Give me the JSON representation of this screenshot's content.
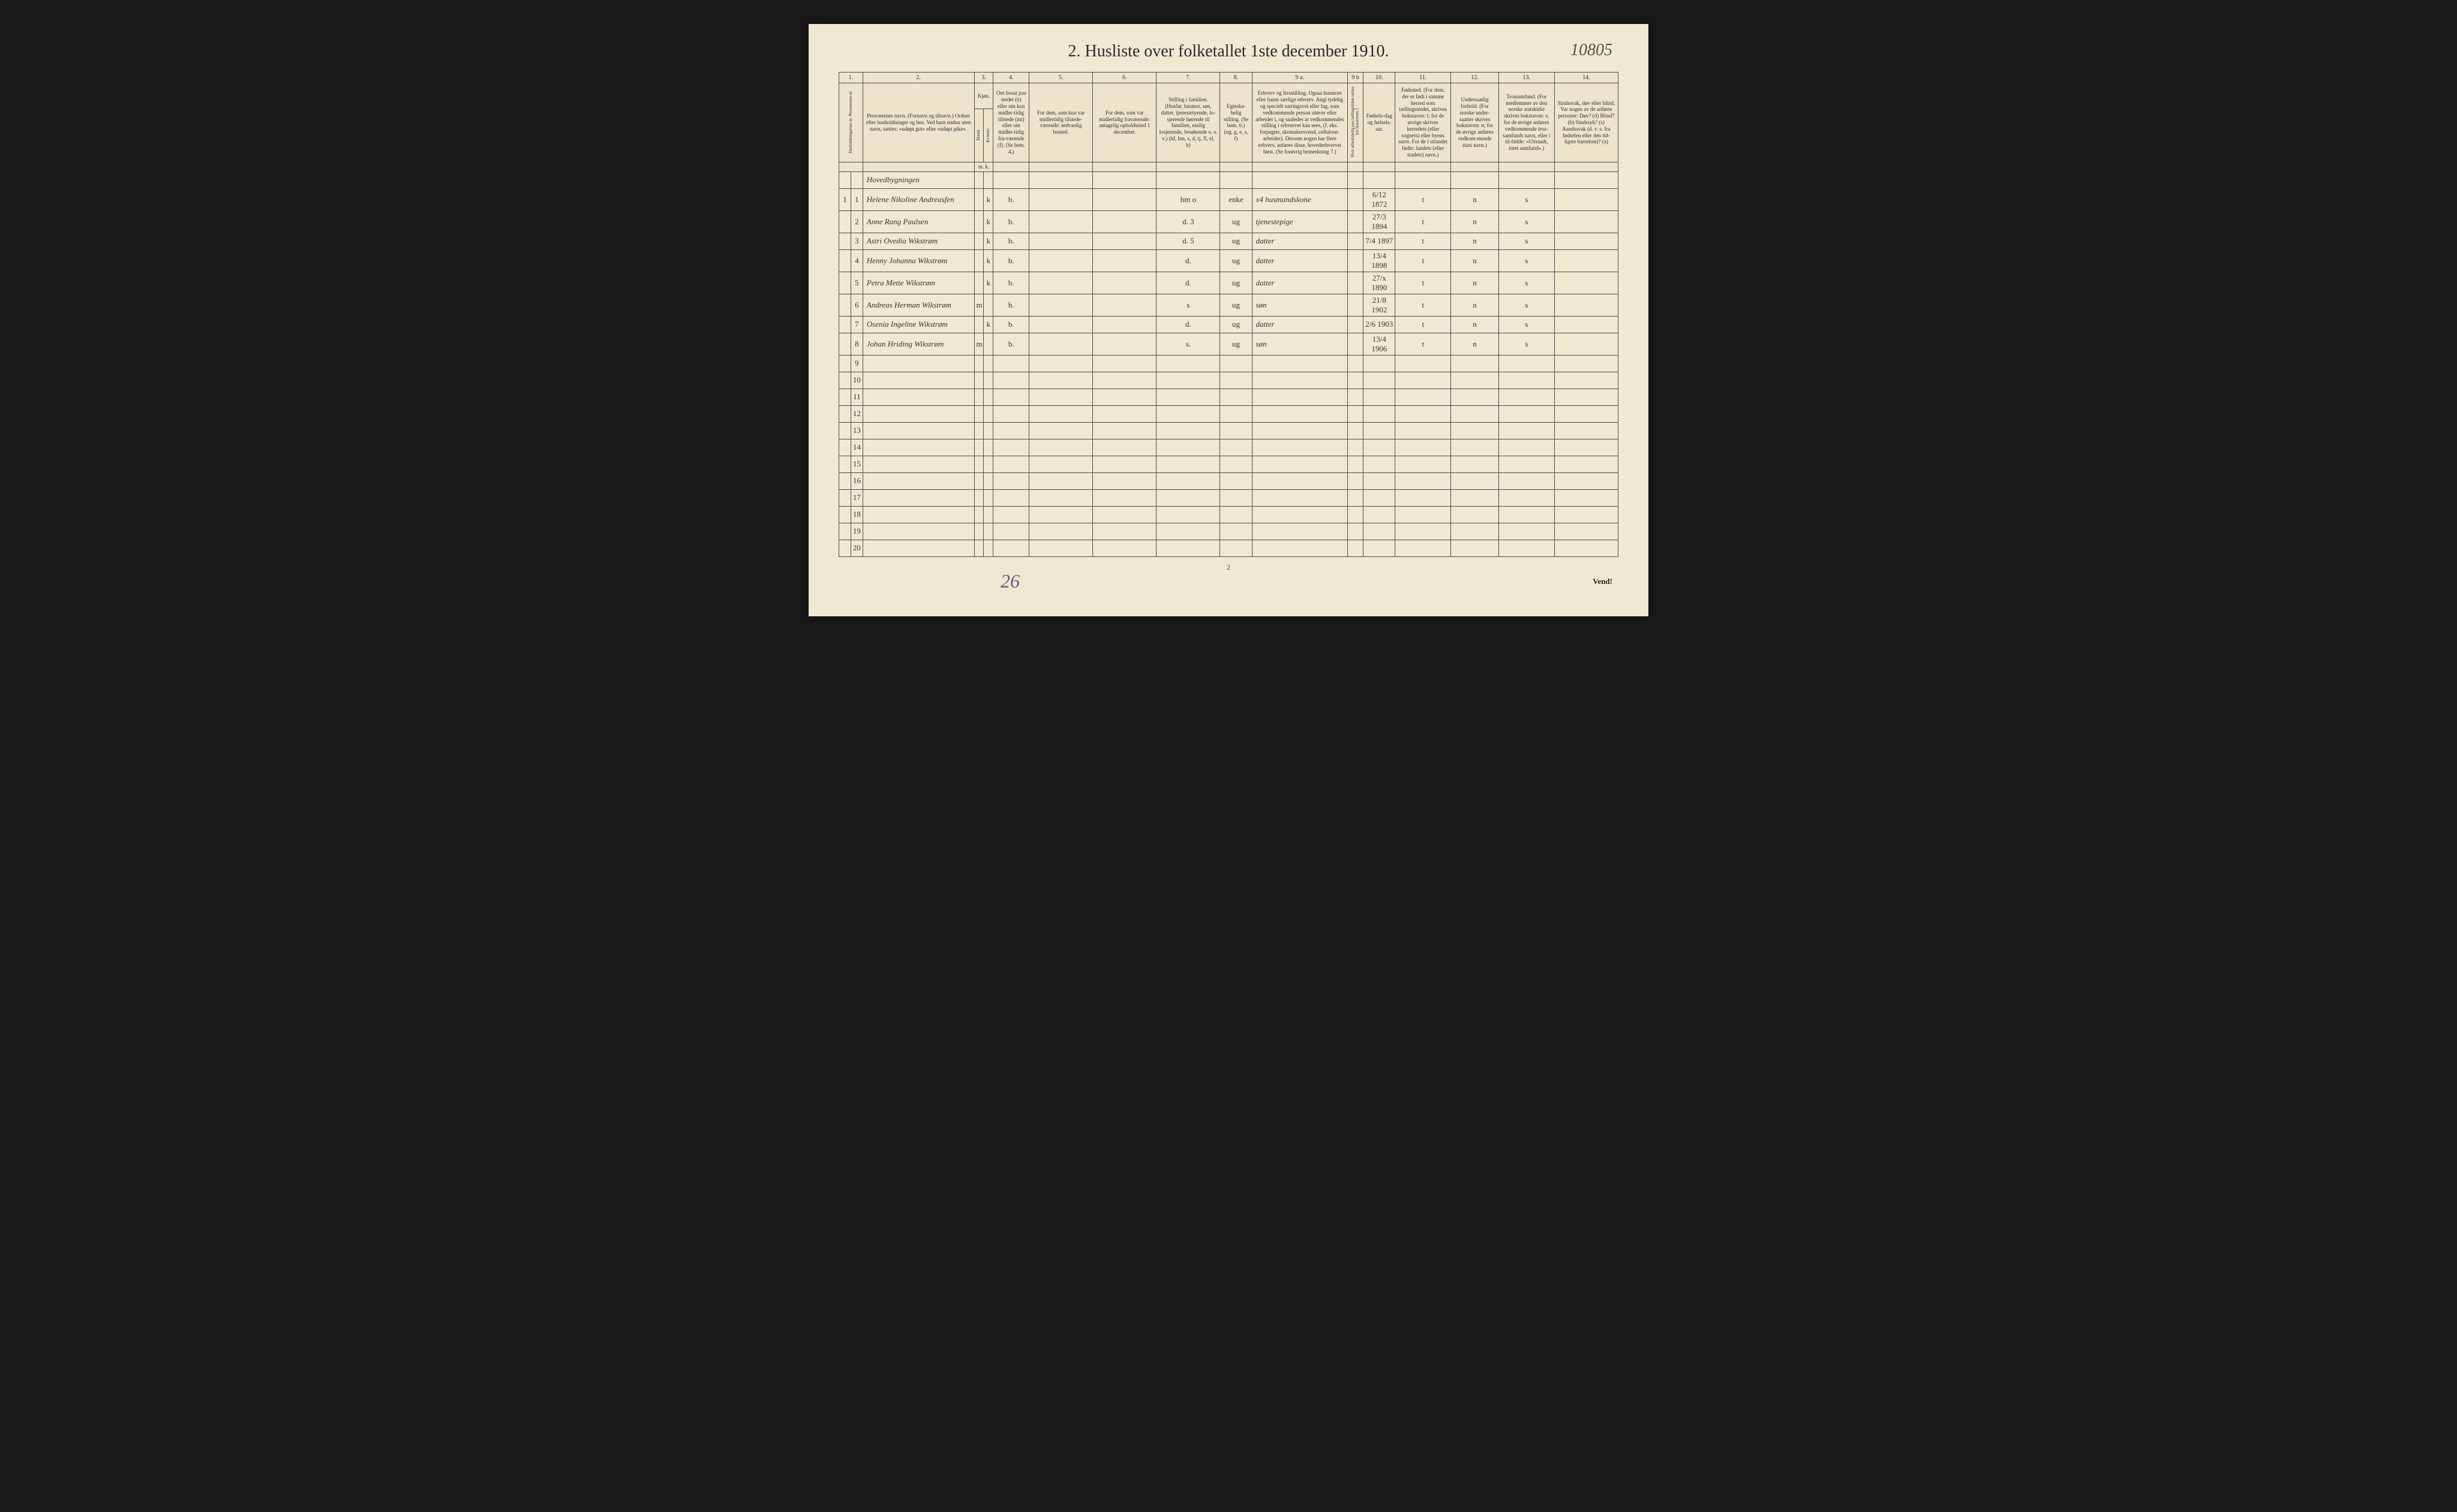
{
  "title": "2.  Husliste over folketallet 1ste december 1910.",
  "page_annotation": "10805",
  "bottom_annotation": "26",
  "bottom_page": "2",
  "vend": "Vend!",
  "headers": {
    "nums": [
      "1.",
      "2.",
      "3.",
      "4.",
      "5.",
      "6.",
      "7.",
      "8.",
      "9 a.",
      "9 b",
      "10.",
      "11.",
      "12.",
      "13.",
      "14."
    ],
    "col1": "Husholdningernes nr.\nPersonernes nr.",
    "col2": "Personernes navn.\n(Fornavn og tilnavn.)\nOrdnet efter husholdninger og hus.\nVed barn endnu uten navn, sættes: «udøpt gut» eller «udøpt pike».",
    "col3": "Kjøn.",
    "col3m": "Mænd.",
    "col3k": "Kvinder.",
    "col4": "Om bosat paa stedet (b) eller om kun midler-tidig tilstede (mt) eller om midler-tidig fra-værende (f). (Se bem. 4.)",
    "col5": "For dem, som kun var midlertidig tilstede-værende:\nsedvanlig bosted.",
    "col6": "For dem, som var midlertidig fraværende:\nantagelig opholdssted 1 december.",
    "col7": "Stilling i familien.\n(Husfar, husmor, søn, datter, tjenestetyende, lo-sjerende hørende til familien, enslig losjerende, besøkende o. s. v.)\n(hf, hm, s, d, tj, fl, el, b)",
    "col8": "Egteska-belig stilling.\n(Se bem. 6.)\n(ug, g, e, s, f)",
    "col9a": "Erhverv og livsstilling.\nOgsaa husmors eller barns særlige erhverv.\nAngi tydelig og specielt næringsvei eller fag, som vedkommende person utøver eller arbeider i, og saaledes at vedkommendes stilling i erhvervet kan sees, (f. eks. forpagter, skomakersvend, cellulose-arbeider). Dersom nogen har flere erhverv, anføres disse, hovederhvervet først.\n(Se forøvrig bemerkning 7.)",
    "col9b": "Hvis arbeidsledig paa tællingstiden sættes her bokstaven: l",
    "col10": "Fødsels-dag og fødsels-aar.",
    "col11": "Fødested.\n(For dem, der er født i samme herred som tællingsstedet, skrives bokstaven: t; for de øvrige skrives herredets (eller sognets) eller byens navn. For de i utlandet fødte: landets (eller stadets) navn.)",
    "col12": "Undersaatlig forhold.\n(For norske under-saatter skrives bokstaven: n; for de øvrige anføres vedkom-mende stats navn.)",
    "col13": "Trossamfund.\n(For medlemmer av den norske statskirke skrives bokstaven: s; for de øvrige anføres vedkommende tros-samfunds navn, eller i til-fælde: «Uttraadt, intet samfund».)",
    "col14": "Sindssvak, døv eller blind.\nVar nogen av de anførte personer:\nDøv? (d)\nBlind? (b)\nSindssyk? (s)\nAandssvak (d. v. s. fra fødselen eller den tid-ligste barndom)? (a)",
    "mk": "m. k."
  },
  "section_heading": "Hovedbygningen",
  "household_num": "1",
  "rows": [
    {
      "pnr": "1",
      "name": "Helene Nikoline Andreasfen",
      "m": "",
      "k": "k",
      "c4": "b.",
      "c5": "",
      "c6": "",
      "c7": "hm    o",
      "c8": "enke",
      "c9a": "x4   husmandskone",
      "c9b": "",
      "c10": "6/12 1872",
      "c11": "t",
      "c12": "n",
      "c13": "s",
      "c14": ""
    },
    {
      "pnr": "2",
      "name": "Anne Rang Paulsen",
      "m": "",
      "k": "k",
      "c4": "b.",
      "c5": "",
      "c6": "",
      "c7": "d.    3",
      "c8": "ug",
      "c9a": "tjenestepige",
      "c9b": "",
      "c10": "27/3 1894",
      "c11": "t",
      "c12": "n",
      "c13": "s",
      "c14": ""
    },
    {
      "pnr": "3",
      "name": "Astri Ovedia Wikstrøm",
      "m": "",
      "k": "k",
      "c4": "b.",
      "c5": "",
      "c6": "",
      "c7": "d.    5",
      "c8": "ug",
      "c9a": "datter",
      "c9b": "",
      "c10": "7/4 1897",
      "c11": "t",
      "c12": "n",
      "c13": "s",
      "c14": ""
    },
    {
      "pnr": "4",
      "name": "Henny Johanna Wikstrøm",
      "m": "",
      "k": "k",
      "c4": "b.",
      "c5": "",
      "c6": "",
      "c7": "d.",
      "c8": "ug",
      "c9a": "datter",
      "c9b": "",
      "c10": "13/4 1898",
      "c11": "t",
      "c12": "n",
      "c13": "s",
      "c14": ""
    },
    {
      "pnr": "5",
      "name": "Petra Mette Wikstrøm",
      "m": "",
      "k": "k",
      "c4": "b.",
      "c5": "",
      "c6": "",
      "c7": "d.",
      "c8": "ug",
      "c9a": "datter",
      "c9b": "",
      "c10": "27/x 1890",
      "c11": "t",
      "c12": "n",
      "c13": "s",
      "c14": ""
    },
    {
      "pnr": "6",
      "name": "Andreas Herman Wikstrøm",
      "m": "m",
      "k": "",
      "c4": "b.",
      "c5": "",
      "c6": "",
      "c7": "s",
      "c8": "ug",
      "c9a": "søn",
      "c9b": "",
      "c10": "21/8 1902",
      "c11": "t",
      "c12": "n",
      "c13": "s",
      "c14": ""
    },
    {
      "pnr": "7",
      "name": "Osenia Ingeline Wikstrøm",
      "m": "",
      "k": "k",
      "c4": "b.",
      "c5": "",
      "c6": "",
      "c7": "d.",
      "c8": "ug",
      "c9a": "datter",
      "c9b": "",
      "c10": "2/6 1903",
      "c11": "t",
      "c12": "n",
      "c13": "s",
      "c14": ""
    },
    {
      "pnr": "8",
      "name": "Johan Hriding Wikstrøm",
      "m": "m",
      "k": "",
      "c4": "b.",
      "c5": "",
      "c6": "",
      "c7": "s.",
      "c8": "ug",
      "c9a": "søn",
      "c9b": "",
      "c10": "13/4 1906",
      "c11": "t",
      "c12": "n",
      "c13": "s",
      "c14": ""
    }
  ],
  "empty_rows": [
    "9",
    "10",
    "11",
    "12",
    "13",
    "14",
    "15",
    "16",
    "17",
    "18",
    "19",
    "20"
  ]
}
